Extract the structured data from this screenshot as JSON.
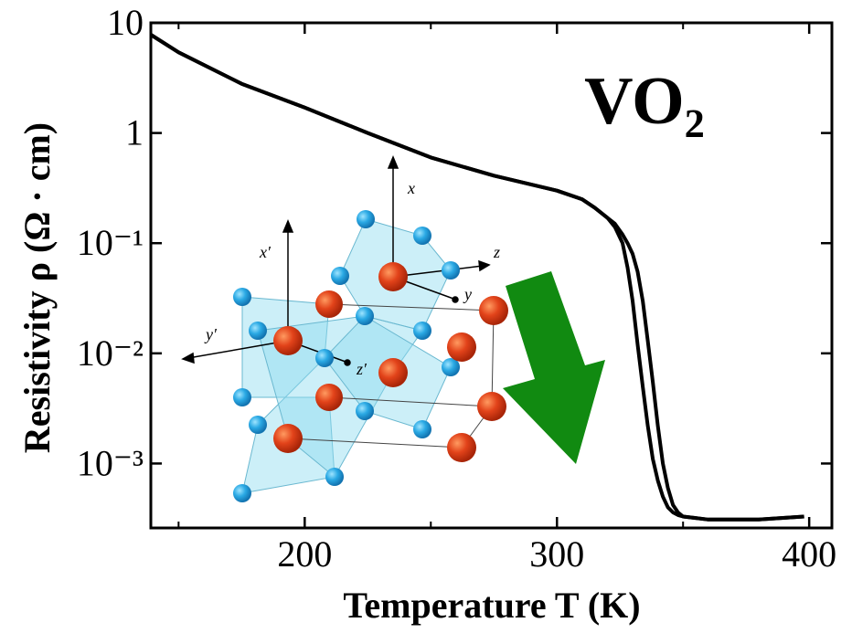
{
  "chart_data": {
    "type": "line",
    "x_label": "Temperature T (K)",
    "y_label": "Resistivity ρ (Ω · cm)",
    "annotations": [
      "VO₂"
    ],
    "inset_labels": [
      "x",
      "x′",
      "y",
      "y′",
      "z",
      "z′"
    ],
    "log_y": true,
    "xlim": [
      139,
      409
    ],
    "ylim": [
      0.00026,
      10
    ],
    "xticks": [
      200,
      300,
      400
    ],
    "xminor": [
      150,
      250,
      350
    ],
    "yticks": [
      10,
      1,
      {
        "value": 0.1,
        "label": "10⁻¹"
      },
      {
        "value": 0.01,
        "label": "10⁻²"
      },
      {
        "value": 0.001,
        "label": "10⁻³"
      }
    ],
    "x": [
      139,
      150,
      175,
      200,
      225,
      250,
      275,
      300,
      310,
      315,
      320,
      323,
      326,
      328,
      330,
      332,
      334,
      336,
      338,
      340,
      342,
      344,
      346,
      348,
      350,
      355,
      360,
      380,
      398
    ],
    "series": [
      {
        "color": "#000000",
        "values": [
          7.8,
          5.4,
          2.8,
          1.7,
          1.0,
          0.6,
          0.41,
          0.3,
          0.25,
          0.21,
          0.17,
          0.14,
          0.1,
          0.06,
          0.03,
          0.012,
          0.005,
          0.0022,
          0.0011,
          0.0007,
          0.0005,
          0.0004,
          0.00036,
          0.00034,
          0.00033,
          0.00032,
          0.00031,
          0.00031,
          0.00033
        ]
      },
      {
        "color": "#000000",
        "values": [
          7.8,
          5.4,
          2.8,
          1.7,
          1.0,
          0.6,
          0.41,
          0.3,
          0.25,
          0.21,
          0.17,
          0.15,
          0.12,
          0.1,
          0.08,
          0.055,
          0.03,
          0.013,
          0.0055,
          0.0022,
          0.001,
          0.0006,
          0.00042,
          0.00036,
          0.00033,
          0.00032,
          0.00031,
          0.00031,
          0.00033
        ]
      }
    ]
  }
}
